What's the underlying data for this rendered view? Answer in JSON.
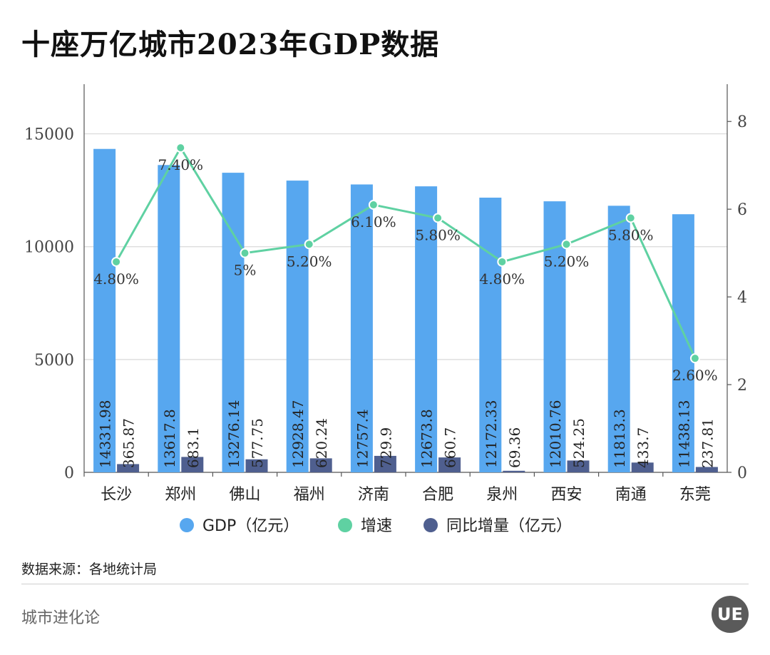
{
  "title": "十座万亿城市2023年GDP数据",
  "source": "数据来源：各地统计局",
  "brand": "城市进化论",
  "logo_text": "UE",
  "colors": {
    "gdp": "#57a7ef",
    "growth": "#5fd1a2",
    "increase": "#4f5f8f"
  },
  "chart_data": {
    "type": "bar",
    "categories": [
      "长沙",
      "郑州",
      "佛山",
      "福州",
      "济南",
      "合肥",
      "泉州",
      "西安",
      "南通",
      "东莞"
    ],
    "series": [
      {
        "name": "GDP（亿元）",
        "type": "bar",
        "axis": "left",
        "values": [
          14331.98,
          13617.8,
          13276.14,
          12928.47,
          12757.4,
          12673.8,
          12172.33,
          12010.76,
          11813.3,
          11438.13
        ],
        "labels": [
          "14331.98",
          "13617.8",
          "13276.14",
          "12928.47",
          "12757.4",
          "12673.8",
          "12172.33",
          "12010.76",
          "11813.3",
          "11438.13"
        ]
      },
      {
        "name": "增速",
        "type": "line",
        "axis": "right",
        "values": [
          4.8,
          7.4,
          5.0,
          5.2,
          6.1,
          5.8,
          4.8,
          5.2,
          5.8,
          2.6
        ],
        "labels": [
          "4.80%",
          "7.40%",
          "5%",
          "5.20%",
          "6.10%",
          "5.80%",
          "4.80%",
          "5.20%",
          "5.80%",
          "2.60%"
        ]
      },
      {
        "name": "同比增量（亿元）",
        "type": "bar",
        "axis": "left",
        "values": [
          365.87,
          683.1,
          577.75,
          620.24,
          729.9,
          660.7,
          69.36,
          524.25,
          433.7,
          237.81
        ],
        "labels": [
          "365.87",
          "683.1",
          "577.75",
          "620.24",
          "729.9",
          "660.7",
          "69.36",
          "524.25",
          "433.7",
          "237.81"
        ]
      }
    ],
    "left_axis": {
      "ylim": [
        0,
        17200
      ],
      "ticks": [
        0,
        5000,
        10000,
        15000
      ],
      "tick_labels": [
        "0",
        "5000",
        "10000",
        "15000"
      ]
    },
    "right_axis": {
      "ylim": [
        0,
        8.85
      ],
      "ticks": [
        0,
        2,
        4,
        6,
        8
      ],
      "tick_labels": [
        "0",
        "2",
        "4",
        "6",
        "8"
      ]
    },
    "grid": true,
    "legend": "bottom"
  }
}
